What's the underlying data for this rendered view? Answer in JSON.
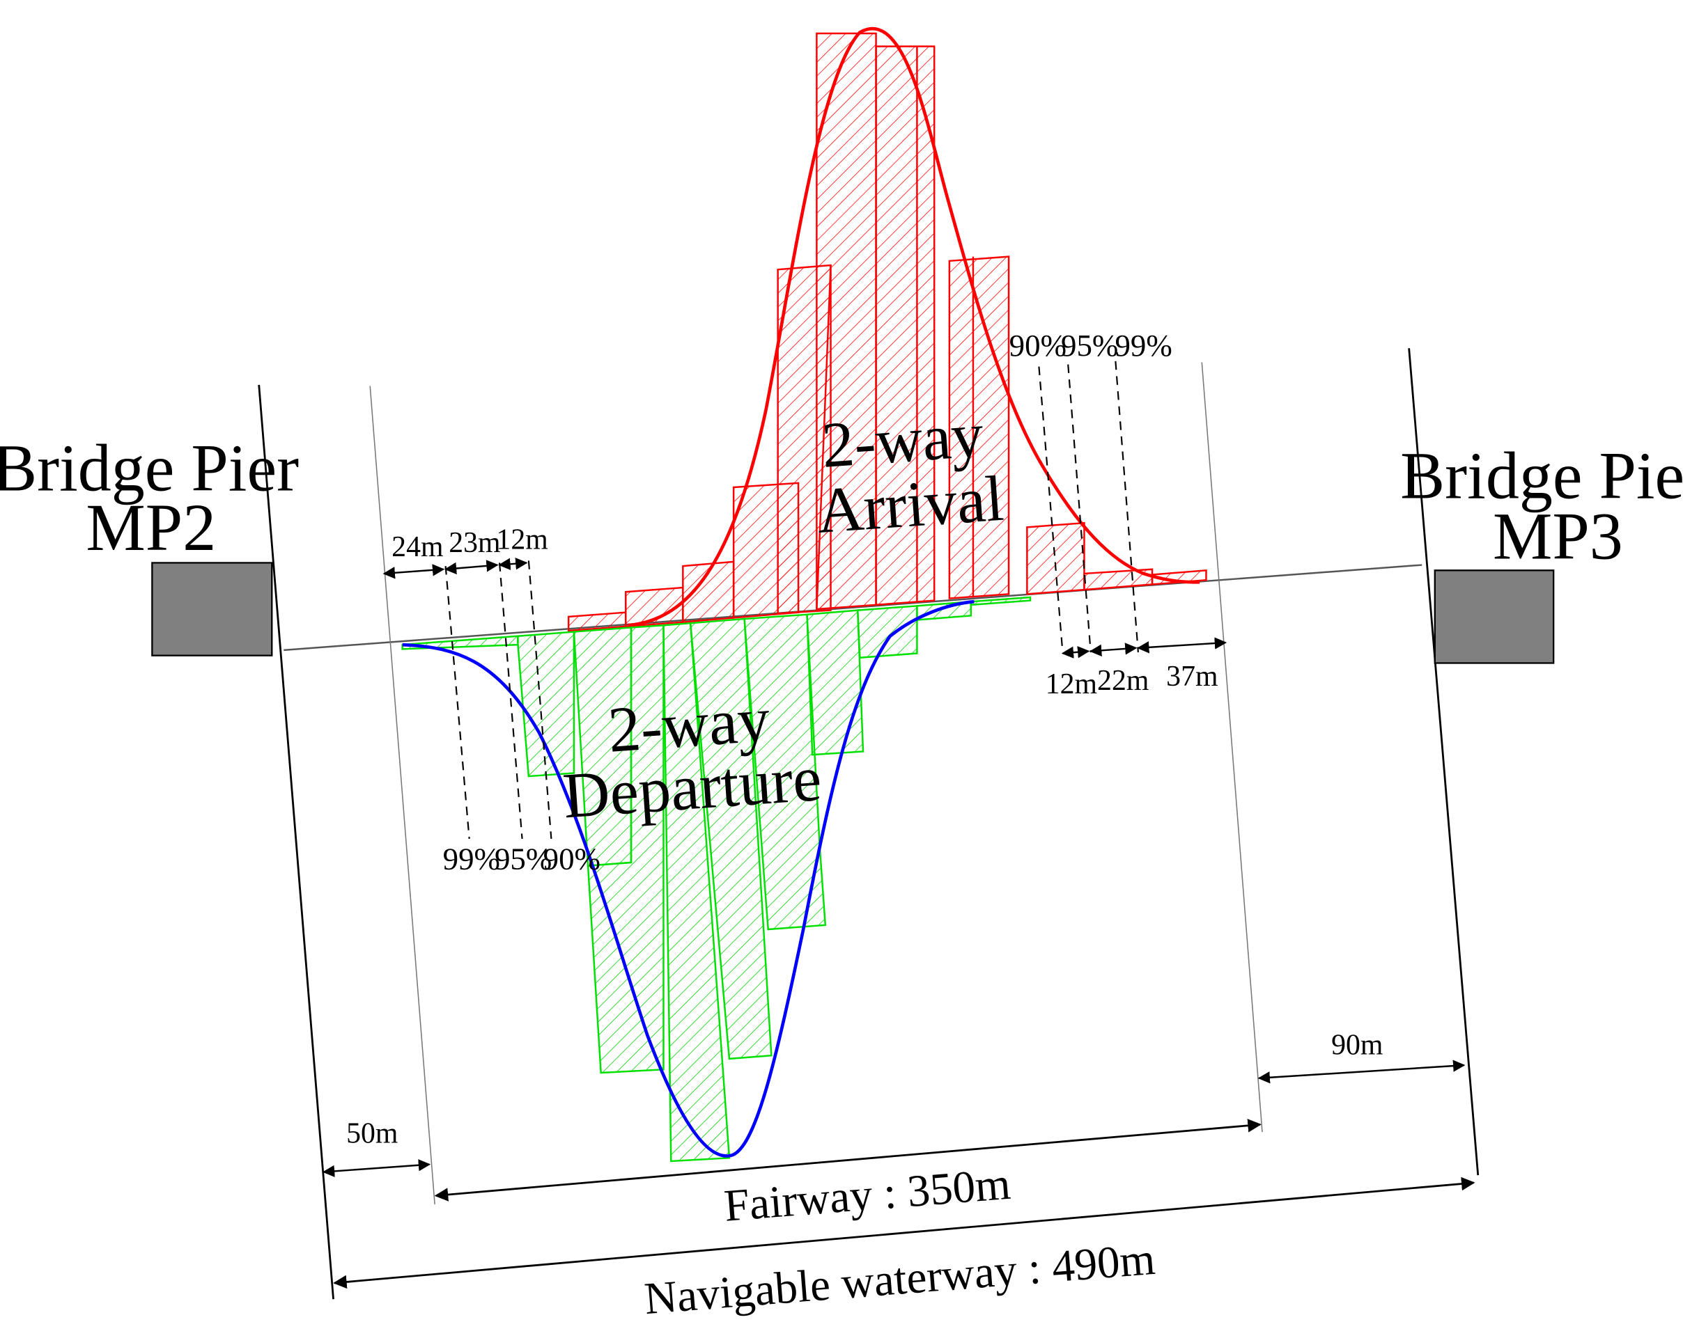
{
  "left_pier": {
    "line1": "Bridge Pier",
    "line2": "MP2",
    "fill": "#808080"
  },
  "right_pier": {
    "line1": "Bridge Pier",
    "line2": "MP3",
    "fill": "#808080"
  },
  "arrival": {
    "label_line1": "2-way",
    "label_line2": "Arrival",
    "color": "#ff0000",
    "percentiles": [
      "90%",
      "95%",
      "99%"
    ],
    "offsets": [
      "12m",
      "22m",
      "37m"
    ]
  },
  "departure": {
    "label_line1": "2-way",
    "label_line2": "Departure",
    "bar_color": "#00e000",
    "curve_color": "#0000ff",
    "percentiles": [
      "99%",
      "95%",
      "90%"
    ],
    "offsets": [
      "24m",
      "23m",
      "12m"
    ]
  },
  "dimensions": {
    "left_clearance": "50m",
    "right_clearance": "90m",
    "fairway": "Fairway : 350m",
    "navigable": "Navigable waterway : 490m"
  }
}
